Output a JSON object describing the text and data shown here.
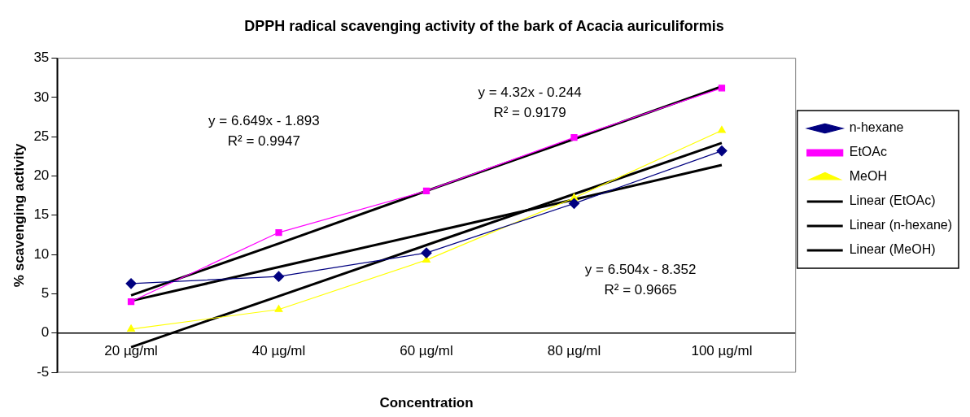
{
  "chart_data": {
    "type": "line",
    "title": "DPPH radical scavenging activity of the bark of Acacia auriculiformis",
    "xlabel": "Concentration",
    "ylabel": "% scavenging activity",
    "categories": [
      "20 µg/ml",
      "40 µg/ml",
      "60 µg/ml",
      "80 µg/ml",
      "100 µg/ml"
    ],
    "ylim": [
      -5,
      35
    ],
    "yticks": [
      -5,
      0,
      5,
      10,
      15,
      20,
      25,
      30,
      35
    ],
    "grid": false,
    "legend": "right",
    "series": [
      {
        "name": "n-hexane",
        "color": "#000080",
        "marker": "diamond",
        "values": [
          6.3,
          7.2,
          10.2,
          16.5,
          23.2
        ]
      },
      {
        "name": "EtOAc",
        "color": "#ff00ff",
        "marker": "square",
        "values": [
          4.0,
          12.8,
          18.1,
          24.9,
          31.2
        ]
      },
      {
        "name": "MeOH",
        "color": "#ffff00",
        "marker": "triangle",
        "values": [
          0.5,
          3.0,
          9.3,
          17.2,
          25.8
        ]
      },
      {
        "name": "Linear (EtOAc)",
        "color": "#000000",
        "marker": "none",
        "values": [
          4.8,
          11.4,
          18.1,
          24.7,
          31.4
        ]
      },
      {
        "name": "Linear (n-hexane)",
        "color": "#000000",
        "marker": "none",
        "values": [
          4.1,
          8.4,
          12.7,
          17.0,
          21.4
        ]
      },
      {
        "name": "Linear (MeOH)",
        "color": "#000000",
        "marker": "none",
        "values": [
          -1.8,
          4.7,
          11.2,
          17.7,
          24.2
        ]
      }
    ],
    "annotations": [
      "y = 6.649x - 1.893",
      "R² = 0.9947",
      "y = 4.32x - 0.244",
      "R² = 0.9179",
      "y = 6.504x - 8.352",
      "R² = 0.9665"
    ]
  }
}
